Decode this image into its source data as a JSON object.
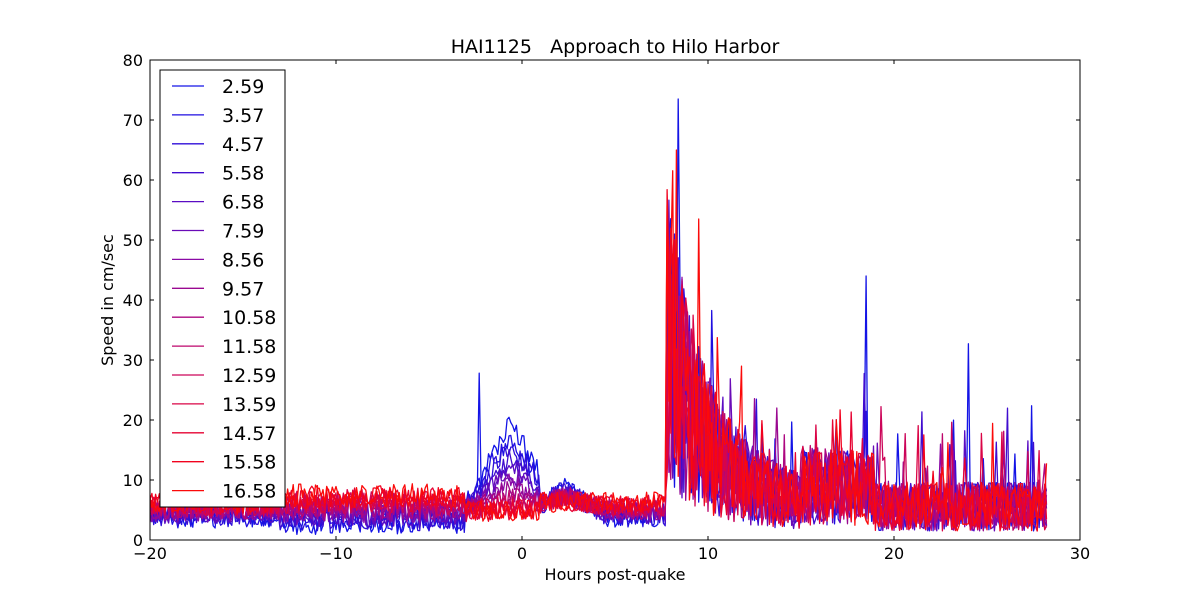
{
  "chart_data": {
    "type": "line",
    "title": "HAI1125   Approach to Hilo Harbor",
    "xlabel": "Hours post-quake",
    "ylabel": "Speed in cm/sec",
    "xlim": [
      -20,
      30
    ],
    "ylim": [
      0,
      80
    ],
    "xticks": [
      -20,
      -10,
      0,
      10,
      20,
      30
    ],
    "xtick_labels": [
      "−20",
      "−10",
      "0",
      "10",
      "20",
      "30"
    ],
    "yticks": [
      0,
      10,
      20,
      30,
      40,
      50,
      60,
      70,
      80
    ],
    "ytick_labels": [
      "0",
      "10",
      "20",
      "30",
      "40",
      "50",
      "60",
      "70",
      "80"
    ],
    "grid": false,
    "legend": "upper-left",
    "x_range_of_data": [
      -20,
      28.2
    ],
    "series": [
      {
        "name": "2.59",
        "color": "#1414e6"
      },
      {
        "name": "3.57",
        "color": "#1f0fe0"
      },
      {
        "name": "4.57",
        "color": "#2f0ed8"
      },
      {
        "name": "5.58",
        "color": "#400ccf"
      },
      {
        "name": "6.58",
        "color": "#5a0cc3"
      },
      {
        "name": "7.59",
        "color": "#6a0bb7"
      },
      {
        "name": "8.56",
        "color": "#8a0aa6"
      },
      {
        "name": "9.57",
        "color": "#9a0890"
      },
      {
        "name": "10.58",
        "color": "#ad0780"
      },
      {
        "name": "11.58",
        "color": "#bd066c"
      },
      {
        "name": "12.59",
        "color": "#cc0559"
      },
      {
        "name": "13.59",
        "color": "#da0446"
      },
      {
        "name": "14.57",
        "color": "#e60332"
      },
      {
        "name": "15.58",
        "color": "#f1021e"
      },
      {
        "name": "16.58",
        "color": "#fb0a0a"
      }
    ],
    "features": [
      {
        "x": -2.3,
        "y": 27.8,
        "series": "2.59"
      },
      {
        "x": 8.4,
        "y": 73.5,
        "series": "2.59"
      },
      {
        "x": 8.3,
        "y": 65,
        "series": "16.58"
      },
      {
        "x": 9.5,
        "y": 53.5,
        "series": "16.58"
      },
      {
        "x": 18.5,
        "y": 44,
        "series": "2.59"
      },
      {
        "x": 24.0,
        "y": 32.7,
        "series": "2.59"
      }
    ]
  }
}
